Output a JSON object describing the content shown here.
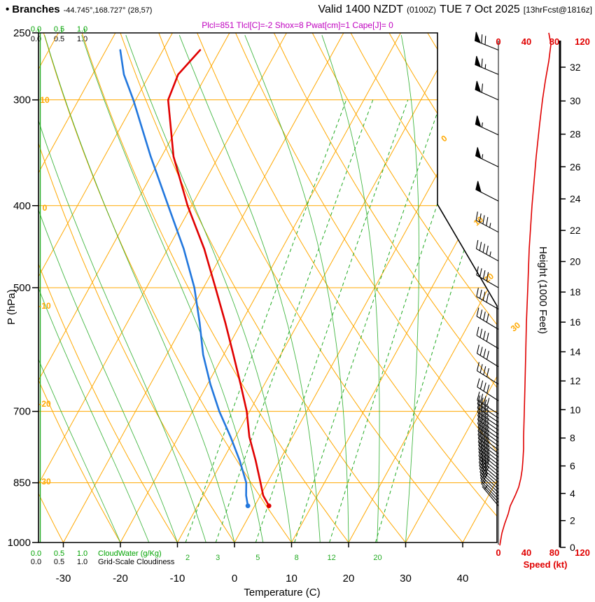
{
  "header": {
    "bullet": "•",
    "station": "Branches",
    "coords": "-44.745°,168.727° (28,57)",
    "valid_main": "Valid 1400 NZDT",
    "valid_utc": "(0100Z)",
    "valid_date": "TUE 7 Oct 2025",
    "fcst": "[13hrFcst@1816z]",
    "params": "Plcl=851 Tlcl[C]=-2 Shox=8 Pwat[cm]=1 Cape[J]= 0"
  },
  "scales": {
    "values": [
      "0.0",
      "0.5",
      "1.0"
    ],
    "cloudwater_label": "CloudWater (g/Kg)",
    "cloudiness_label": "Grid-Scale Cloudiness"
  },
  "axes": {
    "pressure_label": "P (hPa)",
    "temp_label": "Temperature (C)",
    "height_label": "Height (1000 Feet)",
    "speed_label": "Speed (kt)",
    "speed_ticks": [
      0,
      40,
      80,
      120
    ],
    "height_ticks": [
      0,
      2,
      4,
      6,
      8,
      10,
      12,
      14,
      16,
      18,
      20,
      22,
      24,
      26,
      28,
      30,
      32
    ],
    "isotherm_labels": [
      0,
      10,
      20,
      30
    ],
    "adiabat_labels": [
      10,
      0,
      -10,
      -20,
      -30
    ]
  },
  "colors": {
    "orange": "#ffa800",
    "green": "#22aa22",
    "red": "#e00000",
    "blue": "#2277dd",
    "magenta": "#bf00bf",
    "black": "#000000"
  },
  "chart_data": {
    "type": "skewt_log_p_sounding",
    "title": "Branches Valid 1400 NZDT (0100Z) TUE 7 Oct 2025 13hrFcst",
    "pressure_axis": {
      "unit": "hPa",
      "ticks": [
        250,
        300,
        400,
        500,
        700,
        850,
        1000
      ],
      "range": [
        1000,
        250
      ]
    },
    "temp_axis": {
      "unit": "C",
      "ticks": [
        -30,
        -20,
        -10,
        0,
        10,
        20,
        30,
        40
      ]
    },
    "height_axis": {
      "unit": "1000 feet",
      "ticks": [
        0,
        2,
        4,
        6,
        8,
        10,
        12,
        14,
        16,
        18,
        20,
        22,
        24,
        26,
        28,
        30,
        32
      ]
    },
    "speed_axis": {
      "unit": "kt",
      "ticks": [
        0,
        40,
        80,
        120
      ]
    },
    "sounding": {
      "pressure_hPa": [
        905,
        880,
        850,
        800,
        750,
        700,
        650,
        600,
        550,
        500,
        450,
        400,
        350,
        300,
        280,
        262
      ],
      "temperature_c": [
        2.5,
        0.5,
        -1.2,
        -4.2,
        -7.6,
        -10.5,
        -14.2,
        -18.3,
        -22.8,
        -27.9,
        -33.6,
        -40.7,
        -47.9,
        -54.3,
        -55.0,
        -53.5
      ],
      "dewpoint_c": [
        -1.2,
        -2.5,
        -3.7,
        -7.0,
        -10.9,
        -15.3,
        -19.5,
        -23.6,
        -27.3,
        -31.6,
        -37.2,
        -44.1,
        -51.9,
        -60.4,
        -64.5,
        -67.5
      ]
    },
    "speed_profile": {
      "pressure_hPa": [
        1008,
        975,
        950,
        925,
        905,
        880,
        860,
        840,
        820,
        800,
        775,
        750,
        700,
        650,
        600,
        550,
        500,
        450,
        400,
        350,
        320,
        300,
        285,
        270,
        258,
        250
      ],
      "knots": [
        2,
        5,
        9,
        14,
        17,
        24,
        29,
        32,
        34,
        35,
        36,
        36,
        37,
        38,
        39,
        40,
        42,
        44,
        48,
        54,
        59,
        63,
        67,
        72,
        75,
        72
      ]
    },
    "wind_barbs": [
      {
        "p": 905,
        "dir": 320,
        "kt": 5
      },
      {
        "p": 897,
        "dir": 318,
        "kt": 10
      },
      {
        "p": 889,
        "dir": 316,
        "kt": 15
      },
      {
        "p": 881,
        "dir": 315,
        "kt": 18
      },
      {
        "p": 873,
        "dir": 314,
        "kt": 22
      },
      {
        "p": 865,
        "dir": 313,
        "kt": 25
      },
      {
        "p": 857,
        "dir": 312,
        "kt": 28
      },
      {
        "p": 849,
        "dir": 311,
        "kt": 30
      },
      {
        "p": 841,
        "dir": 310,
        "kt": 31
      },
      {
        "p": 833,
        "dir": 310,
        "kt": 32
      },
      {
        "p": 825,
        "dir": 309,
        "kt": 33
      },
      {
        "p": 817,
        "dir": 309,
        "kt": 33
      },
      {
        "p": 809,
        "dir": 308,
        "kt": 34
      },
      {
        "p": 801,
        "dir": 308,
        "kt": 34
      },
      {
        "p": 793,
        "dir": 307,
        "kt": 35
      },
      {
        "p": 785,
        "dir": 307,
        "kt": 35
      },
      {
        "p": 777,
        "dir": 306,
        "kt": 35
      },
      {
        "p": 769,
        "dir": 306,
        "kt": 36
      },
      {
        "p": 761,
        "dir": 306,
        "kt": 36
      },
      {
        "p": 753,
        "dir": 305,
        "kt": 36
      },
      {
        "p": 745,
        "dir": 305,
        "kt": 36
      },
      {
        "p": 737,
        "dir": 305,
        "kt": 37
      },
      {
        "p": 729,
        "dir": 304,
        "kt": 37
      },
      {
        "p": 721,
        "dir": 304,
        "kt": 37
      },
      {
        "p": 713,
        "dir": 304,
        "kt": 37
      },
      {
        "p": 705,
        "dir": 303,
        "kt": 38
      },
      {
        "p": 680,
        "dir": 303,
        "kt": 38
      },
      {
        "p": 650,
        "dir": 302,
        "kt": 38
      },
      {
        "p": 620,
        "dir": 302,
        "kt": 39
      },
      {
        "p": 590,
        "dir": 301,
        "kt": 40
      },
      {
        "p": 560,
        "dir": 301,
        "kt": 40
      },
      {
        "p": 530,
        "dir": 300,
        "kt": 41
      },
      {
        "p": 500,
        "dir": 300,
        "kt": 42
      },
      {
        "p": 465,
        "dir": 299,
        "kt": 44
      },
      {
        "p": 430,
        "dir": 298,
        "kt": 46
      },
      {
        "p": 395,
        "dir": 297,
        "kt": 49
      },
      {
        "p": 360,
        "dir": 296,
        "kt": 53
      },
      {
        "p": 330,
        "dir": 295,
        "kt": 57
      },
      {
        "p": 300,
        "dir": 294,
        "kt": 62
      },
      {
        "p": 280,
        "dir": 293,
        "kt": 67
      },
      {
        "p": 262,
        "dir": 292,
        "kt": 72
      }
    ],
    "background": {
      "isotherm_step_c": 10,
      "dry_adiabat_step_c": 10,
      "moist_adiabat_start_c": [
        -20,
        -15,
        -10,
        -5,
        0,
        5,
        10,
        15,
        20,
        25,
        30
      ],
      "mixing_ratio_g_kg": [
        2,
        3,
        5,
        8,
        12,
        20
      ],
      "cloudwater_profile_g_kg": 0,
      "grid_scale_cloudiness": 0
    }
  }
}
